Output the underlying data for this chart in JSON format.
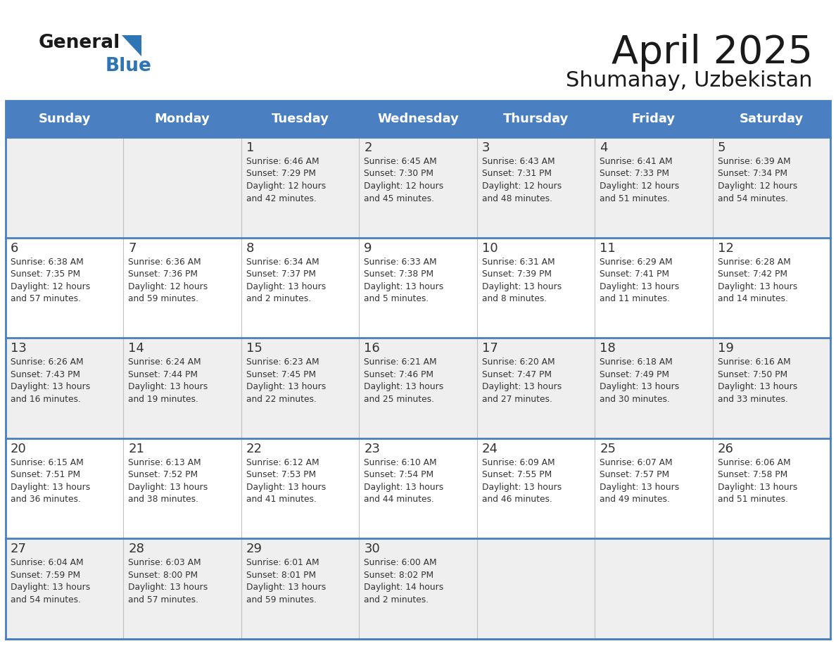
{
  "title": "April 2025",
  "subtitle": "Shumanay, Uzbekistan",
  "header_bg_color": "#4a7fc1",
  "header_text_color": "#FFFFFF",
  "border_color": "#4a7fc1",
  "cell_text_color": "#333333",
  "logo_text_color": "#1a1a1a",
  "logo_blue_color": "#2e75b6",
  "days_of_week": [
    "Sunday",
    "Monday",
    "Tuesday",
    "Wednesday",
    "Thursday",
    "Friday",
    "Saturday"
  ],
  "weeks": [
    [
      {
        "day": "",
        "info": ""
      },
      {
        "day": "",
        "info": ""
      },
      {
        "day": "1",
        "info": "Sunrise: 6:46 AM\nSunset: 7:29 PM\nDaylight: 12 hours\nand 42 minutes."
      },
      {
        "day": "2",
        "info": "Sunrise: 6:45 AM\nSunset: 7:30 PM\nDaylight: 12 hours\nand 45 minutes."
      },
      {
        "day": "3",
        "info": "Sunrise: 6:43 AM\nSunset: 7:31 PM\nDaylight: 12 hours\nand 48 minutes."
      },
      {
        "day": "4",
        "info": "Sunrise: 6:41 AM\nSunset: 7:33 PM\nDaylight: 12 hours\nand 51 minutes."
      },
      {
        "day": "5",
        "info": "Sunrise: 6:39 AM\nSunset: 7:34 PM\nDaylight: 12 hours\nand 54 minutes."
      }
    ],
    [
      {
        "day": "6",
        "info": "Sunrise: 6:38 AM\nSunset: 7:35 PM\nDaylight: 12 hours\nand 57 minutes."
      },
      {
        "day": "7",
        "info": "Sunrise: 6:36 AM\nSunset: 7:36 PM\nDaylight: 12 hours\nand 59 minutes."
      },
      {
        "day": "8",
        "info": "Sunrise: 6:34 AM\nSunset: 7:37 PM\nDaylight: 13 hours\nand 2 minutes."
      },
      {
        "day": "9",
        "info": "Sunrise: 6:33 AM\nSunset: 7:38 PM\nDaylight: 13 hours\nand 5 minutes."
      },
      {
        "day": "10",
        "info": "Sunrise: 6:31 AM\nSunset: 7:39 PM\nDaylight: 13 hours\nand 8 minutes."
      },
      {
        "day": "11",
        "info": "Sunrise: 6:29 AM\nSunset: 7:41 PM\nDaylight: 13 hours\nand 11 minutes."
      },
      {
        "day": "12",
        "info": "Sunrise: 6:28 AM\nSunset: 7:42 PM\nDaylight: 13 hours\nand 14 minutes."
      }
    ],
    [
      {
        "day": "13",
        "info": "Sunrise: 6:26 AM\nSunset: 7:43 PM\nDaylight: 13 hours\nand 16 minutes."
      },
      {
        "day": "14",
        "info": "Sunrise: 6:24 AM\nSunset: 7:44 PM\nDaylight: 13 hours\nand 19 minutes."
      },
      {
        "day": "15",
        "info": "Sunrise: 6:23 AM\nSunset: 7:45 PM\nDaylight: 13 hours\nand 22 minutes."
      },
      {
        "day": "16",
        "info": "Sunrise: 6:21 AM\nSunset: 7:46 PM\nDaylight: 13 hours\nand 25 minutes."
      },
      {
        "day": "17",
        "info": "Sunrise: 6:20 AM\nSunset: 7:47 PM\nDaylight: 13 hours\nand 27 minutes."
      },
      {
        "day": "18",
        "info": "Sunrise: 6:18 AM\nSunset: 7:49 PM\nDaylight: 13 hours\nand 30 minutes."
      },
      {
        "day": "19",
        "info": "Sunrise: 6:16 AM\nSunset: 7:50 PM\nDaylight: 13 hours\nand 33 minutes."
      }
    ],
    [
      {
        "day": "20",
        "info": "Sunrise: 6:15 AM\nSunset: 7:51 PM\nDaylight: 13 hours\nand 36 minutes."
      },
      {
        "day": "21",
        "info": "Sunrise: 6:13 AM\nSunset: 7:52 PM\nDaylight: 13 hours\nand 38 minutes."
      },
      {
        "day": "22",
        "info": "Sunrise: 6:12 AM\nSunset: 7:53 PM\nDaylight: 13 hours\nand 41 minutes."
      },
      {
        "day": "23",
        "info": "Sunrise: 6:10 AM\nSunset: 7:54 PM\nDaylight: 13 hours\nand 44 minutes."
      },
      {
        "day": "24",
        "info": "Sunrise: 6:09 AM\nSunset: 7:55 PM\nDaylight: 13 hours\nand 46 minutes."
      },
      {
        "day": "25",
        "info": "Sunrise: 6:07 AM\nSunset: 7:57 PM\nDaylight: 13 hours\nand 49 minutes."
      },
      {
        "day": "26",
        "info": "Sunrise: 6:06 AM\nSunset: 7:58 PM\nDaylight: 13 hours\nand 51 minutes."
      }
    ],
    [
      {
        "day": "27",
        "info": "Sunrise: 6:04 AM\nSunset: 7:59 PM\nDaylight: 13 hours\nand 54 minutes."
      },
      {
        "day": "28",
        "info": "Sunrise: 6:03 AM\nSunset: 8:00 PM\nDaylight: 13 hours\nand 57 minutes."
      },
      {
        "day": "29",
        "info": "Sunrise: 6:01 AM\nSunset: 8:01 PM\nDaylight: 13 hours\nand 59 minutes."
      },
      {
        "day": "30",
        "info": "Sunrise: 6:00 AM\nSunset: 8:02 PM\nDaylight: 14 hours\nand 2 minutes."
      },
      {
        "day": "",
        "info": ""
      },
      {
        "day": "",
        "info": ""
      },
      {
        "day": "",
        "info": ""
      }
    ]
  ],
  "row_bg_colors": [
    "#EFEFEF",
    "#FFFFFF",
    "#EFEFEF",
    "#FFFFFF",
    "#EFEFEF"
  ]
}
